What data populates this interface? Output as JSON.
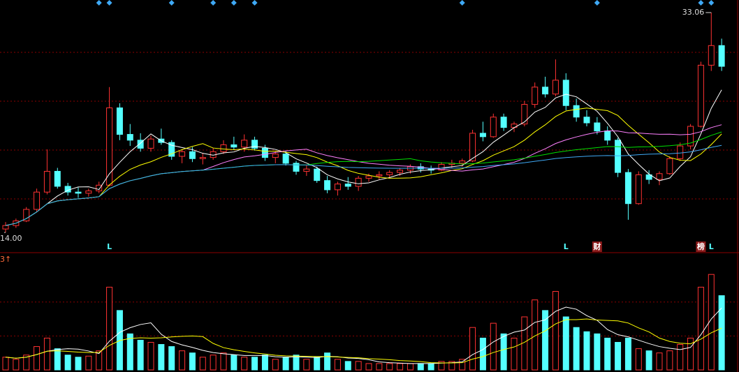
{
  "chart_data": {
    "type": "candlestick",
    "up_color": "#ff3232",
    "down_color": "#54ffff",
    "ylim": [
      12.37,
      34.15
    ],
    "yticks": [
      16.91,
      21.14,
      25.38,
      29.61
    ],
    "ohlc": [
      [
        14.3,
        14.9,
        14.0,
        14.6
      ],
      [
        14.6,
        15.2,
        14.4,
        15.0
      ],
      [
        15.0,
        16.2,
        14.9,
        16.0
      ],
      [
        16.0,
        17.8,
        15.8,
        17.5
      ],
      [
        17.5,
        21.2,
        17.3,
        19.3
      ],
      [
        19.3,
        19.6,
        17.8,
        18.0
      ],
      [
        18.0,
        18.3,
        17.2,
        17.5
      ],
      [
        17.5,
        17.9,
        17.0,
        17.4
      ],
      [
        17.4,
        17.8,
        17.1,
        17.6
      ],
      [
        17.6,
        18.4,
        17.4,
        18.1
      ],
      [
        18.1,
        26.6,
        18.0,
        24.8
      ],
      [
        24.8,
        25.2,
        22.0,
        22.5
      ],
      [
        22.5,
        23.4,
        21.5,
        22.0
      ],
      [
        22.0,
        22.6,
        21.0,
        21.3
      ],
      [
        21.3,
        22.4,
        21.0,
        22.1
      ],
      [
        22.1,
        23.0,
        21.6,
        21.8
      ],
      [
        21.8,
        22.0,
        20.3,
        20.6
      ],
      [
        20.6,
        21.2,
        20.0,
        21.0
      ],
      [
        21.0,
        21.4,
        20.1,
        20.4
      ],
      [
        20.4,
        20.9,
        19.9,
        20.5
      ],
      [
        20.5,
        21.3,
        20.3,
        21.0
      ],
      [
        21.0,
        22.0,
        20.8,
        21.6
      ],
      [
        21.6,
        22.3,
        21.2,
        21.4
      ],
      [
        21.4,
        22.5,
        21.0,
        22.0
      ],
      [
        22.0,
        22.3,
        21.1,
        21.3
      ],
      [
        21.3,
        21.6,
        20.2,
        20.5
      ],
      [
        20.5,
        21.0,
        20.0,
        20.8
      ],
      [
        20.8,
        21.1,
        19.8,
        20.0
      ],
      [
        20.0,
        20.2,
        19.0,
        19.3
      ],
      [
        19.3,
        19.8,
        18.9,
        19.5
      ],
      [
        19.5,
        19.7,
        18.3,
        18.5
      ],
      [
        18.5,
        18.9,
        17.4,
        17.7
      ],
      [
        17.7,
        18.4,
        17.2,
        18.2
      ],
      [
        18.2,
        18.8,
        17.7,
        18.0
      ],
      [
        18.0,
        18.9,
        17.6,
        18.7
      ],
      [
        18.7,
        19.1,
        18.4,
        18.9
      ],
      [
        18.9,
        19.3,
        18.6,
        19.0
      ],
      [
        19.0,
        19.4,
        18.7,
        19.2
      ],
      [
        19.2,
        19.6,
        18.9,
        19.4
      ],
      [
        19.4,
        19.9,
        19.1,
        19.7
      ],
      [
        19.7,
        20.0,
        19.2,
        19.5
      ],
      [
        19.5,
        19.8,
        19.1,
        19.4
      ],
      [
        19.4,
        20.1,
        19.3,
        19.9
      ],
      [
        19.9,
        20.3,
        19.6,
        20.0
      ],
      [
        20.0,
        20.4,
        19.7,
        20.2
      ],
      [
        20.2,
        22.9,
        20.1,
        22.6
      ],
      [
        22.6,
        23.6,
        21.9,
        22.3
      ],
      [
        22.3,
        24.3,
        22.2,
        24.0
      ],
      [
        24.0,
        24.3,
        22.8,
        23.1
      ],
      [
        23.1,
        23.6,
        22.7,
        23.4
      ],
      [
        23.4,
        25.4,
        23.2,
        25.1
      ],
      [
        25.1,
        27.0,
        24.8,
        26.6
      ],
      [
        26.6,
        27.5,
        25.7,
        26.0
      ],
      [
        26.0,
        29.0,
        25.8,
        27.2
      ],
      [
        27.2,
        27.8,
        24.6,
        25.0
      ],
      [
        25.0,
        25.6,
        23.6,
        24.0
      ],
      [
        24.0,
        24.6,
        23.2,
        23.5
      ],
      [
        23.5,
        24.0,
        22.5,
        22.8
      ],
      [
        22.8,
        23.2,
        21.6,
        22.0
      ],
      [
        22.0,
        22.2,
        18.8,
        19.2
      ],
      [
        19.2,
        19.5,
        15.1,
        16.5
      ],
      [
        16.5,
        19.3,
        16.4,
        19.0
      ],
      [
        19.0,
        19.4,
        18.2,
        18.6
      ],
      [
        18.6,
        19.3,
        18.1,
        19.1
      ],
      [
        19.1,
        20.6,
        19.0,
        20.4
      ],
      [
        20.4,
        21.8,
        20.2,
        21.5
      ],
      [
        21.5,
        23.4,
        21.2,
        23.2
      ],
      [
        23.2,
        28.8,
        23.1,
        28.5
      ],
      [
        28.5,
        33.06,
        28.0,
        30.2
      ],
      [
        30.2,
        30.8,
        28.0,
        28.4
      ]
    ],
    "moving_averages": [
      {
        "period": 5,
        "color": "#ffffff"
      },
      {
        "period": 10,
        "color": "#ffff00"
      },
      {
        "period": 20,
        "color": "#ff80ff"
      },
      {
        "period": 30,
        "color": "#00e000"
      },
      {
        "period": 60,
        "color": "#3fa9f5"
      }
    ],
    "annotations": [
      {
        "index": 68,
        "value": 33.06,
        "label": "33.06"
      },
      {
        "index": 0,
        "value": 14.0,
        "label": "14.00"
      }
    ],
    "markers": [
      {
        "index": 10,
        "text": "L"
      },
      {
        "index": 54,
        "text": "L"
      },
      {
        "index": 57,
        "text": "财"
      },
      {
        "index": 67,
        "text": "榜"
      },
      {
        "index": 68,
        "text": "L"
      }
    ],
    "signals": [
      9,
      10,
      16,
      20,
      22,
      24,
      44,
      57,
      67,
      68
    ],
    "volume_label": "3↑",
    "volume_ylim": [
      0,
      100
    ],
    "volume_yticks": [
      32,
      64
    ],
    "volume": [
      12,
      10,
      14,
      22,
      30,
      20,
      14,
      12,
      13,
      18,
      78,
      56,
      34,
      28,
      26,
      24,
      22,
      18,
      16,
      12,
      14,
      16,
      14,
      12,
      12,
      14,
      10,
      12,
      14,
      10,
      12,
      16,
      10,
      8,
      8,
      6,
      6,
      6,
      6,
      6,
      6,
      6,
      8,
      8,
      10,
      40,
      30,
      44,
      34,
      30,
      50,
      66,
      56,
      74,
      50,
      40,
      36,
      34,
      30,
      26,
      30,
      20,
      18,
      16,
      18,
      24,
      30,
      78,
      90,
      70
    ],
    "volume_moving_averages": [
      {
        "period": 5,
        "color": "#ffffff"
      },
      {
        "period": 10,
        "color": "#ffff00"
      }
    ]
  }
}
